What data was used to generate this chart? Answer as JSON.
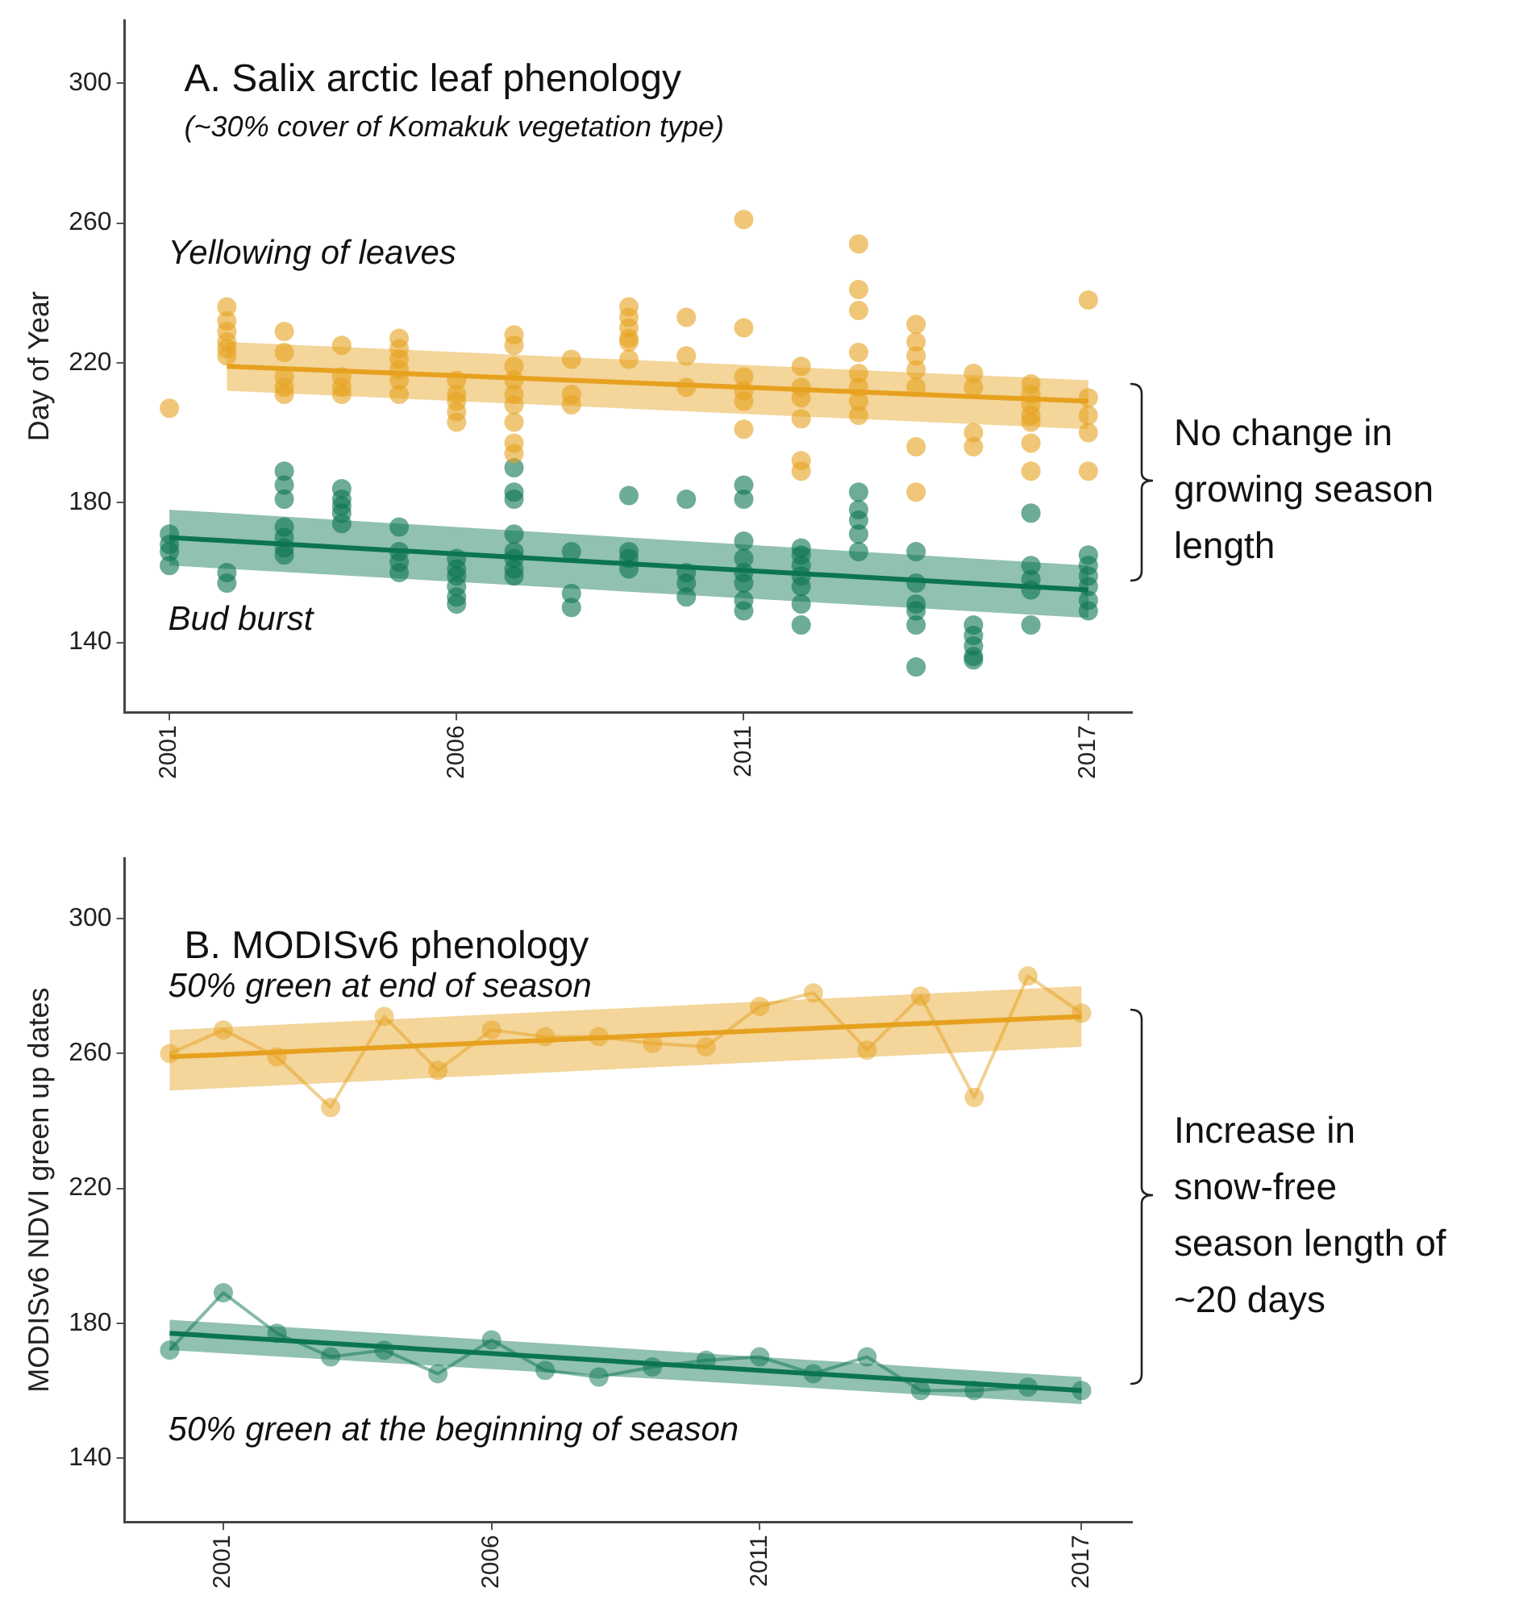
{
  "chart_data": [
    {
      "type": "scatter",
      "title": "A. Salix arctic leaf phenology",
      "subtitle": "(~30% cover of Komakuk vegetation type)",
      "ylabel": "Day of Year",
      "xlim": [
        2000.22,
        2017.76
      ],
      "ylim": [
        120,
        318
      ],
      "xticks": [
        2001,
        2006,
        2011,
        2017
      ],
      "yticks": [
        140,
        180,
        220,
        260,
        300
      ],
      "grid": false,
      "legend": false,
      "marker": "circle",
      "annotations": [
        "No change in growing season length"
      ],
      "series": [
        {
          "name": "Yellowing of leaves",
          "color": "#e6a11e",
          "x": [
            2001,
            2002,
            2002,
            2002,
            2002,
            2002,
            2002,
            2003,
            2003,
            2003,
            2003,
            2003,
            2004,
            2004,
            2004,
            2004,
            2005,
            2005,
            2005,
            2005,
            2005,
            2005,
            2006,
            2006,
            2006,
            2006,
            2006,
            2007,
            2007,
            2007,
            2007,
            2007,
            2007,
            2007,
            2007,
            2007,
            2008,
            2008,
            2008,
            2009,
            2009,
            2009,
            2009,
            2009,
            2009,
            2010,
            2010,
            2010,
            2011,
            2011,
            2011,
            2011,
            2011,
            2011,
            2012,
            2012,
            2012,
            2012,
            2012,
            2012,
            2013,
            2013,
            2013,
            2013,
            2013,
            2013,
            2013,
            2013,
            2014,
            2014,
            2014,
            2014,
            2014,
            2014,
            2014,
            2015,
            2015,
            2015,
            2015,
            2016,
            2016,
            2016,
            2016,
            2016,
            2016,
            2016,
            2017,
            2017,
            2017,
            2017,
            2017
          ],
          "values": [
            207,
            236,
            232,
            229,
            226,
            224,
            222,
            229,
            223,
            216,
            213,
            211,
            225,
            216,
            213,
            211,
            227,
            224,
            221,
            218,
            215,
            211,
            215,
            211,
            209,
            206,
            203,
            228,
            225,
            219,
            215,
            211,
            208,
            203,
            197,
            194,
            221,
            211,
            208,
            236,
            233,
            230,
            227,
            226,
            221,
            233,
            222,
            213,
            261,
            230,
            216,
            212,
            209,
            201,
            219,
            213,
            210,
            204,
            192,
            189,
            254,
            241,
            235,
            223,
            217,
            213,
            209,
            205,
            231,
            226,
            222,
            218,
            213,
            196,
            183,
            217,
            213,
            200,
            196,
            214,
            211,
            208,
            205,
            203,
            197,
            189,
            238,
            210,
            205,
            200,
            189
          ]
        },
        {
          "name": "Bud burst",
          "color": "#0b7550",
          "x": [
            2001,
            2001,
            2001,
            2001,
            2002,
            2002,
            2003,
            2003,
            2003,
            2003,
            2003,
            2003,
            2003,
            2004,
            2004,
            2004,
            2004,
            2004,
            2005,
            2005,
            2005,
            2005,
            2006,
            2006,
            2006,
            2006,
            2006,
            2006,
            2007,
            2007,
            2007,
            2007,
            2007,
            2007,
            2007,
            2007,
            2008,
            2008,
            2008,
            2009,
            2009,
            2009,
            2009,
            2010,
            2010,
            2010,
            2010,
            2011,
            2011,
            2011,
            2011,
            2011,
            2011,
            2011,
            2011,
            2012,
            2012,
            2012,
            2012,
            2012,
            2012,
            2012,
            2013,
            2013,
            2013,
            2013,
            2013,
            2014,
            2014,
            2014,
            2014,
            2014,
            2014,
            2015,
            2015,
            2015,
            2015,
            2015,
            2016,
            2016,
            2016,
            2016,
            2016,
            2017,
            2017,
            2017,
            2017,
            2017,
            2017
          ],
          "values": [
            171,
            168,
            166,
            162,
            160,
            157,
            189,
            185,
            181,
            173,
            170,
            167,
            165,
            184,
            181,
            179,
            177,
            174,
            173,
            166,
            163,
            160,
            164,
            161,
            159,
            156,
            153,
            151,
            190,
            183,
            181,
            171,
            166,
            164,
            161,
            159,
            166,
            154,
            150,
            182,
            166,
            164,
            161,
            181,
            160,
            157,
            153,
            185,
            181,
            169,
            164,
            160,
            157,
            152,
            149,
            167,
            165,
            162,
            159,
            156,
            151,
            145,
            183,
            178,
            175,
            171,
            166,
            166,
            157,
            151,
            149,
            145,
            133,
            145,
            142,
            139,
            136,
            135,
            177,
            162,
            158,
            155,
            145,
            165,
            162,
            159,
            156,
            152,
            149
          ]
        },
        {
          "type": "line",
          "color": "#e6a11e",
          "marker": "none",
          "x": [
            2002,
            2017
          ],
          "values": [
            219,
            209
          ],
          "lower": [
            212,
            201
          ],
          "upper": [
            226,
            215
          ]
        },
        {
          "type": "line",
          "color": "#0b7550",
          "marker": "none",
          "x": [
            2001,
            2017
          ],
          "values": [
            170,
            155
          ],
          "lower": [
            162,
            147
          ],
          "upper": [
            178,
            162
          ]
        }
      ]
    },
    {
      "type": "line",
      "title": "B. MODISv6 phenology",
      "ylabel": "MODISv6 NDVI green up dates",
      "xlim": [
        1999.16,
        2017.94
      ],
      "ylim": [
        121,
        318
      ],
      "xticks": [
        2001,
        2006,
        2011,
        2017
      ],
      "yticks": [
        140,
        180,
        220,
        260,
        300
      ],
      "grid": false,
      "legend": false,
      "marker": "circle",
      "annotations": [
        "Increase in snow-free season length of ~20 days"
      ],
      "series": [
        {
          "name": "50% green at end of season",
          "color": "#e6a11e",
          "x": [
            2000,
            2001,
            2002,
            2003,
            2004,
            2005,
            2006,
            2007,
            2008,
            2009,
            2010,
            2011,
            2012,
            2013,
            2014,
            2015,
            2016,
            2017
          ],
          "values": [
            260,
            267,
            259,
            244,
            271,
            255,
            267,
            265,
            265,
            263,
            262,
            274,
            278,
            261,
            277,
            247,
            283,
            272
          ]
        },
        {
          "name": "50% green at the beginning of season",
          "color": "#0b7550",
          "x": [
            2000,
            2001,
            2002,
            2003,
            2004,
            2005,
            2006,
            2007,
            2008,
            2009,
            2010,
            2011,
            2012,
            2013,
            2014,
            2015,
            2016,
            2017
          ],
          "values": [
            172,
            189,
            177,
            170,
            172,
            165,
            175,
            166,
            164,
            167,
            169,
            170,
            165,
            170,
            160,
            160,
            161,
            160
          ]
        },
        {
          "color": "#e6a11e",
          "marker": "none",
          "x": [
            2000,
            2017
          ],
          "values": [
            259,
            271
          ],
          "lower": [
            249,
            262
          ],
          "upper": [
            267,
            280
          ]
        },
        {
          "color": "#0b7550",
          "marker": "none",
          "x": [
            2000,
            2017
          ],
          "values": [
            177,
            160
          ],
          "lower": [
            172,
            156
          ],
          "upper": [
            181,
            164
          ]
        }
      ]
    }
  ]
}
